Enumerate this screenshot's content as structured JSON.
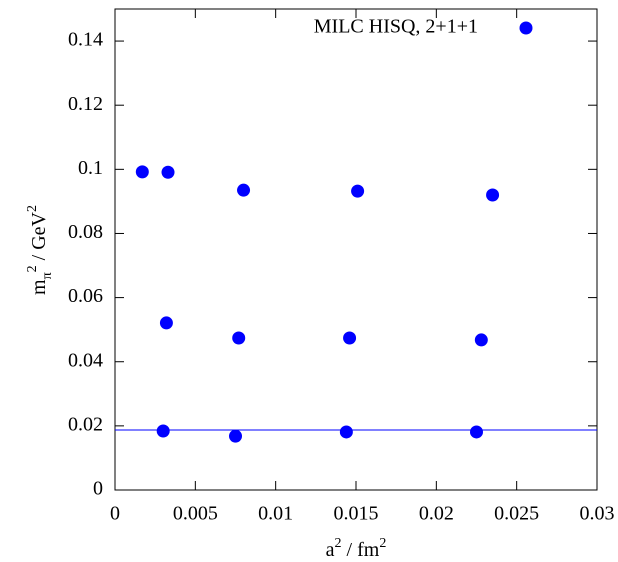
{
  "chart_data": {
    "type": "scatter",
    "xlabel": [
      {
        "text": "a"
      },
      {
        "text": "2",
        "style": "sup"
      },
      {
        "text": " / fm"
      },
      {
        "text": "2",
        "style": "sup"
      }
    ],
    "ylabel": [
      {
        "text": "m"
      },
      {
        "text": "π",
        "style": "sub"
      },
      {
        "text": "2",
        "style": "sup"
      },
      {
        "text": " / GeV"
      },
      {
        "text": "2",
        "style": "sup"
      }
    ],
    "series": [
      {
        "name": "MILC HISQ, 2+1+1",
        "color": "#0000ff",
        "x": [
          0.0017,
          0.0033,
          0.008,
          0.0151,
          0.0235,
          0.0032,
          0.0077,
          0.0146,
          0.0228,
          0.003,
          0.0075,
          0.0144,
          0.0225
        ],
        "values": [
          0.0992,
          0.0991,
          0.0935,
          0.0932,
          0.092,
          0.0521,
          0.0474,
          0.0474,
          0.0468,
          0.0184,
          0.0168,
          0.0181,
          0.0181
        ]
      }
    ],
    "reference_line": {
      "y": 0.0187,
      "color": "#0000ff"
    },
    "xlim": [
      0,
      0.03
    ],
    "xticks": [
      0,
      0.005,
      0.01,
      0.015,
      0.02,
      0.025,
      0.03
    ],
    "ylim": [
      0,
      0.15
    ],
    "yticks": [
      0,
      0.02,
      0.04,
      0.06,
      0.08,
      0.1,
      0.12,
      0.14
    ],
    "legend": "top-right",
    "grid": false
  }
}
